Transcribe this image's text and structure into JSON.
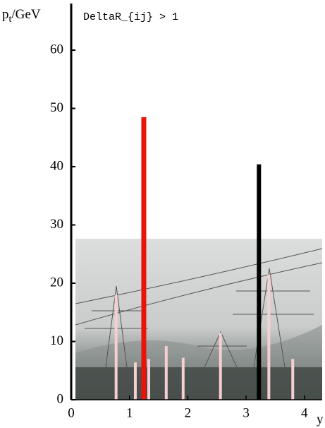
{
  "chart_data": {
    "type": "bar",
    "title": "DeltaR_{ij} > 1",
    "ylabel_base": "p",
    "ylabel_sub": "t",
    "ylabel_unit": "/GeV",
    "xlabel": "y",
    "xlim": [
      0,
      4.3
    ],
    "ylim": [
      0,
      68
    ],
    "xticks": [
      0,
      1,
      2,
      3,
      4
    ],
    "yticks": [
      0,
      10,
      20,
      30,
      40,
      50,
      60
    ],
    "series": [
      {
        "color": "#e8140c",
        "x": [
          1.245
        ],
        "values": [
          48.5
        ]
      },
      {
        "color": "#000000",
        "x": [
          3.22
        ],
        "values": [
          40.4
        ]
      },
      {
        "color": "#f6cfd2",
        "x": [
          0.77,
          1.1,
          1.33,
          1.63,
          1.92,
          2.56,
          3.39,
          3.8
        ],
        "values": [
          18,
          6.4,
          7,
          9.2,
          7.2,
          11.5,
          21.5,
          7
        ]
      }
    ]
  }
}
